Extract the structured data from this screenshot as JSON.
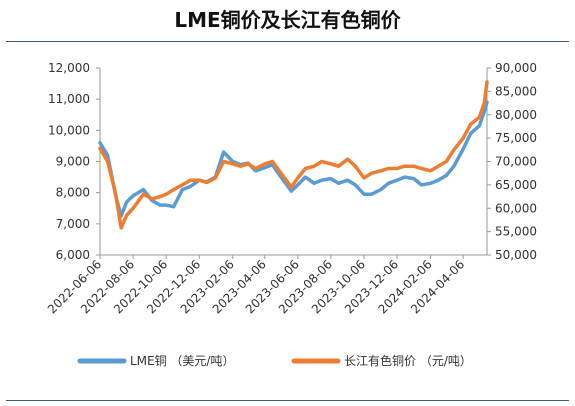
{
  "title": "LME铜价及长江有色铜价",
  "chart_data": {
    "type": "line",
    "title": "LME铜价及长江有色铜价",
    "y_left_ticks": [
      "6,000",
      "7,000",
      "8,000",
      "9,000",
      "10,000",
      "11,000",
      "12,000"
    ],
    "y_left_lim": [
      6000,
      12000
    ],
    "y_right_ticks": [
      "50,000",
      "55,000",
      "60,000",
      "65,000",
      "70,000",
      "75,000",
      "80,000",
      "85,000",
      "90,000"
    ],
    "y_right_lim": [
      50000,
      90000
    ],
    "x_ticks": [
      "2022-06-06",
      "2022-08-06",
      "2022-10-06",
      "2022-12-06",
      "2023-02-06",
      "2023-04-06",
      "2023-06-06",
      "2023-08-06",
      "2023-10-06",
      "2023-12-06",
      "2024-02-06",
      "2024-04-06"
    ],
    "x_range": [
      "2022-06-06",
      "2024-05-20"
    ],
    "grid": false,
    "legend_position": "bottom",
    "series": [
      {
        "name": "LME铜 （美元/吨）",
        "axis": "left",
        "color": "#5b9bd5",
        "points": [
          [
            "2022-06-06",
            9600
          ],
          [
            "2022-06-20",
            9200
          ],
          [
            "2022-07-05",
            7900
          ],
          [
            "2022-07-15",
            7250
          ],
          [
            "2022-07-25",
            7700
          ],
          [
            "2022-08-06",
            7900
          ],
          [
            "2022-08-25",
            8100
          ],
          [
            "2022-09-10",
            7750
          ],
          [
            "2022-09-25",
            7600
          ],
          [
            "2022-10-06",
            7600
          ],
          [
            "2022-10-20",
            7550
          ],
          [
            "2022-11-05",
            8100
          ],
          [
            "2022-11-20",
            8200
          ],
          [
            "2022-12-06",
            8400
          ],
          [
            "2022-12-20",
            8350
          ],
          [
            "2023-01-05",
            8500
          ],
          [
            "2023-01-20",
            9300
          ],
          [
            "2023-02-06",
            9000
          ],
          [
            "2023-02-20",
            8900
          ],
          [
            "2023-03-06",
            8950
          ],
          [
            "2023-03-20",
            8700
          ],
          [
            "2023-04-06",
            8800
          ],
          [
            "2023-04-20",
            8900
          ],
          [
            "2023-05-06",
            8500
          ],
          [
            "2023-05-25",
            8050
          ],
          [
            "2023-06-06",
            8250
          ],
          [
            "2023-06-20",
            8500
          ],
          [
            "2023-07-06",
            8300
          ],
          [
            "2023-07-20",
            8400
          ],
          [
            "2023-08-06",
            8450
          ],
          [
            "2023-08-20",
            8300
          ],
          [
            "2023-09-06",
            8400
          ],
          [
            "2023-09-20",
            8250
          ],
          [
            "2023-10-06",
            7950
          ],
          [
            "2023-10-20",
            7950
          ],
          [
            "2023-11-06",
            8100
          ],
          [
            "2023-11-20",
            8300
          ],
          [
            "2023-12-06",
            8400
          ],
          [
            "2023-12-20",
            8500
          ],
          [
            "2024-01-06",
            8450
          ],
          [
            "2024-01-20",
            8250
          ],
          [
            "2024-02-06",
            8300
          ],
          [
            "2024-02-20",
            8400
          ],
          [
            "2024-03-06",
            8550
          ],
          [
            "2024-03-20",
            8850
          ],
          [
            "2024-04-06",
            9400
          ],
          [
            "2024-04-20",
            9900
          ],
          [
            "2024-05-06",
            10150
          ],
          [
            "2024-05-15",
            10600
          ],
          [
            "2024-05-20",
            10900
          ]
        ]
      },
      {
        "name": "长江有色铜价 （元/吨）",
        "axis": "right",
        "color": "#ed7d31",
        "points": [
          [
            "2022-06-06",
            72800
          ],
          [
            "2022-06-20",
            70000
          ],
          [
            "2022-07-05",
            63000
          ],
          [
            "2022-07-15",
            55800
          ],
          [
            "2022-07-25",
            58500
          ],
          [
            "2022-08-06",
            60000
          ],
          [
            "2022-08-25",
            63000
          ],
          [
            "2022-09-10",
            62000
          ],
          [
            "2022-09-25",
            62500
          ],
          [
            "2022-10-06",
            63000
          ],
          [
            "2022-10-20",
            64000
          ],
          [
            "2022-11-05",
            65000
          ],
          [
            "2022-11-20",
            66000
          ],
          [
            "2022-12-06",
            66000
          ],
          [
            "2022-12-20",
            65500
          ],
          [
            "2023-01-05",
            66500
          ],
          [
            "2023-01-20",
            70000
          ],
          [
            "2023-02-06",
            69500
          ],
          [
            "2023-02-20",
            69000
          ],
          [
            "2023-03-06",
            69500
          ],
          [
            "2023-03-20",
            68500
          ],
          [
            "2023-04-06",
            69500
          ],
          [
            "2023-04-20",
            70000
          ],
          [
            "2023-05-06",
            67500
          ],
          [
            "2023-05-25",
            64500
          ],
          [
            "2023-06-06",
            66500
          ],
          [
            "2023-06-20",
            68500
          ],
          [
            "2023-07-06",
            69000
          ],
          [
            "2023-07-20",
            70000
          ],
          [
            "2023-08-06",
            69500
          ],
          [
            "2023-08-20",
            69000
          ],
          [
            "2023-09-06",
            70500
          ],
          [
            "2023-09-20",
            69000
          ],
          [
            "2023-10-06",
            66500
          ],
          [
            "2023-10-20",
            67500
          ],
          [
            "2023-11-06",
            68000
          ],
          [
            "2023-11-20",
            68500
          ],
          [
            "2023-12-06",
            68500
          ],
          [
            "2023-12-20",
            69000
          ],
          [
            "2024-01-06",
            69000
          ],
          [
            "2024-01-20",
            68500
          ],
          [
            "2024-02-06",
            68000
          ],
          [
            "2024-02-20",
            69000
          ],
          [
            "2024-03-06",
            70000
          ],
          [
            "2024-03-20",
            72500
          ],
          [
            "2024-04-06",
            75000
          ],
          [
            "2024-04-20",
            78000
          ],
          [
            "2024-05-06",
            79500
          ],
          [
            "2024-05-15",
            82500
          ],
          [
            "2024-05-20",
            87000
          ]
        ]
      }
    ]
  }
}
